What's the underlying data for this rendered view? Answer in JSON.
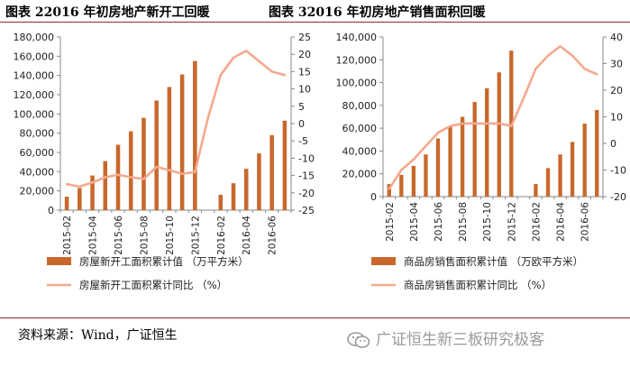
{
  "header": {
    "left_title": "图表 22016 年初房地产新开工回暖",
    "right_title": "图表 32016 年初房地产销售面积回暖"
  },
  "colors": {
    "bar": "#c8682c",
    "line": "#f4a98e",
    "rule": "#8e2f1f",
    "axis": "#888888"
  },
  "chart_data": [
    {
      "type": "bar",
      "categories": [
        "2015-02",
        "2015-03",
        "2015-04",
        "2015-05",
        "2015-06",
        "2015-07",
        "2015-08",
        "2015-09",
        "2015-10",
        "2015-11",
        "2015-12",
        "2016-01",
        "2016-02",
        "2016-03",
        "2016-04",
        "2016-05",
        "2016-06",
        "2016-07"
      ],
      "tick_labels": [
        "2015-02",
        "2015-04",
        "2015-06",
        "2015-08",
        "2015-10",
        "2015-12",
        "2016-02",
        "2016-04",
        "2016-06"
      ],
      "series": [
        {
          "name": "房屋新开工面积累计值  （万平方米）",
          "kind": "bar",
          "axis": "left",
          "values": [
            14000,
            23000,
            36000,
            51000,
            68000,
            82000,
            96000,
            114000,
            128000,
            141000,
            155000,
            null,
            16000,
            28000,
            43000,
            59000,
            78000,
            93000
          ]
        },
        {
          "name": "房屋新开工面积累计同比  （%）",
          "kind": "line",
          "axis": "right",
          "values": [
            -17.5,
            -18.2,
            -17,
            -15.5,
            -14.8,
            -15.5,
            -16,
            -12.5,
            -13.5,
            -14.5,
            -14,
            1.5,
            14,
            19,
            21,
            18,
            15,
            14
          ]
        }
      ],
      "ylim_left": [
        0,
        180000
      ],
      "yticks_left": [
        "0",
        "20,000",
        "40,000",
        "60,000",
        "80,000",
        "100,000",
        "120,000",
        "140,000",
        "160,000",
        "180,000"
      ],
      "ylim_right": [
        -25,
        25
      ],
      "yticks_right": [
        "-25",
        "-20",
        "-15",
        "-10",
        "-5",
        "0",
        "5",
        "10",
        "15",
        "20",
        "25"
      ],
      "grid": false,
      "legend_position": "bottom"
    },
    {
      "type": "bar",
      "categories": [
        "2015-02",
        "2015-03",
        "2015-04",
        "2015-05",
        "2015-06",
        "2015-07",
        "2015-08",
        "2015-09",
        "2015-10",
        "2015-11",
        "2015-12",
        "2016-01",
        "2016-02",
        "2016-03",
        "2016-04",
        "2016-05",
        "2016-06",
        "2016-07"
      ],
      "tick_labels": [
        "2015-02",
        "2015-04",
        "2015-06",
        "2015-08",
        "2015-10",
        "2015-12",
        "2016-02",
        "2016-04",
        "2016-06"
      ],
      "series": [
        {
          "name": "商品房销售面积累计值  （万欧平方米）",
          "kind": "bar",
          "axis": "left",
          "values": [
            11000,
            19000,
            27000,
            37000,
            51000,
            61000,
            70000,
            83000,
            95000,
            109000,
            128000,
            null,
            11000,
            25000,
            37000,
            48000,
            64000,
            76000
          ]
        },
        {
          "name": "商品房销售面积累计同比  （%）",
          "kind": "line",
          "axis": "right",
          "values": [
            -17,
            -10,
            -6,
            -1,
            4,
            6.5,
            7.5,
            7.5,
            7.5,
            7.5,
            6.5,
            17,
            28,
            33,
            36.5,
            33,
            28,
            26
          ]
        }
      ],
      "ylim_left": [
        0,
        140000
      ],
      "yticks_left": [
        "0",
        "20,000",
        "40,000",
        "60,000",
        "80,000",
        "100,000",
        "120,000",
        "140,000"
      ],
      "ylim_right": [
        -20,
        40
      ],
      "yticks_right": [
        "-20",
        "-10",
        "0",
        "10",
        "20",
        "30",
        "40"
      ],
      "grid": false,
      "legend_position": "bottom"
    }
  ],
  "footer": {
    "source": "资料来源：Wind，广证恒生",
    "watermark": "广证恒生新三板研究极客",
    "watermark_icon": "wechat-icon"
  }
}
